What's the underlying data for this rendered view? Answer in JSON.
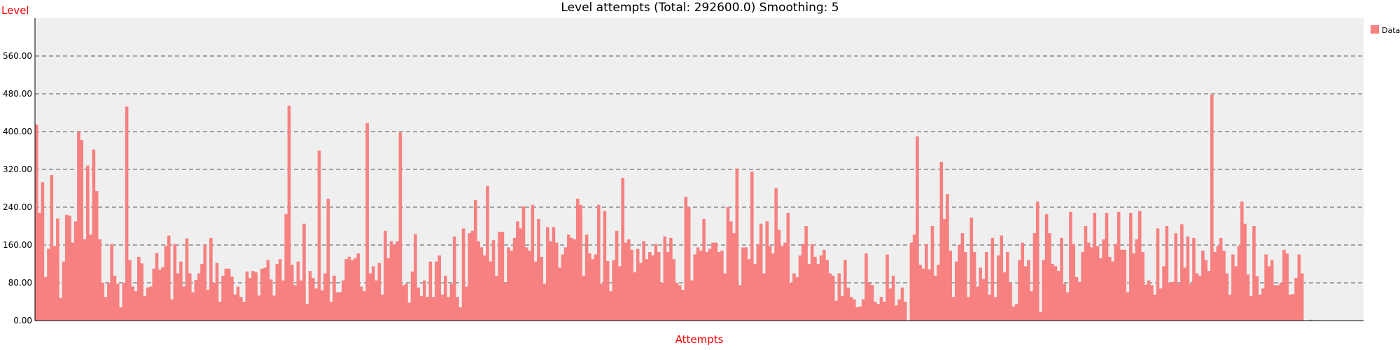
{
  "chart_data": {
    "type": "bar",
    "title": "Level attempts (Total: 292600.0) Smoothing: 5",
    "xlabel": "Attempts",
    "ylabel": "Level",
    "ylim": [
      0,
      640
    ],
    "yticks": [
      "0.00",
      "80.00",
      "160.00",
      "240.00",
      "320.00",
      "400.00",
      "480.00",
      "560.00"
    ],
    "grid": true,
    "legend_position": "top-right",
    "series": [
      {
        "name": "Data",
        "color": "#f78080",
        "values": [
          415,
          228,
          293,
          92,
          152,
          308,
          158,
          216,
          48,
          125,
          224,
          222,
          165,
          210,
          400,
          382,
          172,
          328,
          182,
          362,
          274,
          172,
          80,
          50,
          80,
          162,
          95,
          78,
          28,
          80,
          453,
          128,
          72,
          62,
          135,
          121,
          52,
          70,
          72,
          110,
          143,
          108,
          113,
          158,
          180,
          45,
          162,
          100,
          125,
          72,
          174,
          100,
          60,
          86,
          100,
          120,
          160,
          65,
          175,
          80,
          122,
          40,
          95,
          110,
          110,
          93,
          55,
          72,
          50,
          40,
          104,
          90,
          105,
          102,
          53,
          110,
          112,
          128,
          87,
          53,
          120,
          130,
          85,
          225,
          455,
          118,
          75,
          125,
          85,
          205,
          35,
          105,
          90,
          68,
          360,
          64,
          100,
          258,
          40,
          95,
          60,
          60,
          85,
          130,
          135,
          128,
          132,
          142,
          72,
          62,
          418,
          100,
          115,
          85,
          122,
          55,
          190,
          132,
          168,
          160,
          168,
          398,
          75,
          78,
          38,
          104,
          183,
          70,
          52,
          85,
          50,
          125,
          50,
          125,
          138,
          55,
          95,
          50,
          78,
          178,
          50,
          28,
          195,
          72,
          185,
          190,
          255,
          168,
          155,
          138,
          285,
          125,
          170,
          95,
          188,
          188,
          80,
          155,
          148,
          175,
          210,
          195,
          242,
          155,
          148,
          245,
          125,
          215,
          135,
          78,
          198,
          168,
          198,
          165,
          112,
          140,
          155,
          182,
          175,
          172,
          258,
          245,
          95,
          182,
          142,
          130,
          140,
          245,
          78,
          232,
          126,
          62,
          128,
          190,
          115,
          302,
          165,
          172,
          150,
          102,
          152,
          122,
          168,
          130,
          145,
          138,
          162,
          145,
          80,
          178,
          145,
          175,
          130,
          80,
          75,
          65,
          262,
          240,
          85,
          140,
          155,
          148,
          215,
          145,
          152,
          165,
          165,
          145,
          148,
          100,
          240,
          210,
          185,
          322,
          75,
          155,
          155,
          130,
          315,
          120,
          162,
          205,
          100,
          210,
          158,
          142,
          280,
          192,
          158,
          165,
          228,
          80,
          100,
          92,
          138,
          162,
          200,
          120,
          162,
          135,
          120,
          138,
          150,
          128,
          100,
          95,
          42,
          100,
          52,
          128,
          70,
          50,
          45,
          28,
          30,
          45,
          142,
          80,
          75,
          40,
          35,
          50,
          40,
          140,
          68,
          95,
          32,
          45,
          70,
          40,
          0,
          165,
          182,
          390,
          118,
          110,
          162,
          108,
          200,
          95,
          118,
          336,
          215,
          268,
          148,
          50,
          125,
          160,
          185,
          145,
          50,
          218,
          145,
          72,
          112,
          88,
          145,
          55,
          175,
          50,
          138,
          180,
          102,
          145,
          80,
          30,
          35,
          128,
          165,
          115,
          128,
          62,
          185,
          252,
          18,
          128,
          225,
          185,
          120,
          115,
          105,
          175,
          78,
          60,
          230,
          162,
          92,
          82,
          145,
          200,
          165,
          155,
          228,
          158,
          132,
          172,
          228,
          135,
          125,
          162,
          230,
          150,
          150,
          60,
          228,
          142,
          172,
          232,
          145,
          76,
          85,
          75,
          55,
          195,
          68,
          115,
          200,
          80,
          82,
          185,
          78,
          204,
          112,
          178,
          78,
          175,
          100,
          95,
          148,
          128,
          105,
          478,
          145,
          158,
          175,
          148,
          100,
          55,
          140,
          115,
          158,
          252,
          205,
          98,
          52,
          200,
          94,
          55,
          68,
          140,
          115,
          128,
          75,
          75,
          80,
          150,
          142,
          55,
          56,
          90,
          140,
          100,
          0,
          0,
          2,
          0,
          0,
          0,
          0,
          0,
          0,
          0,
          0,
          0,
          0,
          0,
          0,
          0,
          0,
          0,
          0,
          0
        ]
      }
    ]
  }
}
